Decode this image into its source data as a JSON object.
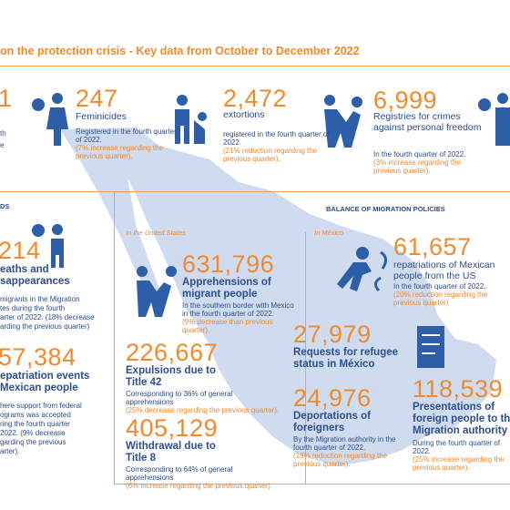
{
  "header": {
    "title": "on the protection crisis  - Key data from October to December 2022"
  },
  "cropped_top": {
    "figure": "1",
    "fragments": [
      "th",
      "e"
    ]
  },
  "top": [
    {
      "figure": "247",
      "label": "Feminicides",
      "note": "Registered in the fourth quarter of 2022.",
      "change": "(7% increase regarding the previous quarter)."
    },
    {
      "figure": "2,472",
      "label": "extortions",
      "note": "registered in the fourth quarter of 2022.",
      "change": "(21% reduction regarding the previous quarter)."
    },
    {
      "figure": "6,999",
      "label": "Registries for crimes against personal freedom",
      "note": "In the fourth quarter of 2022.",
      "change": "(3% increase regarding the previous quarter)."
    }
  ],
  "left": {
    "header": "DS",
    "items": [
      {
        "figure": "214",
        "label": [
          "eaths and",
          "sappearances"
        ],
        "note": [
          "migrants in the Migration",
          "tes during the fourth",
          "arter of 2022. (18% decrease",
          "arding the previous quarter)"
        ]
      },
      {
        "figure": "57,384",
        "label": [
          "epatriation events",
          "Mexican people"
        ],
        "note": [
          "here support from federal",
          "ograms was accepted",
          "ring the fourth quarter",
          "2022. (9% decrease",
          "garding the previous",
          "arter)."
        ]
      }
    ]
  },
  "united_states": {
    "place": "In the United States",
    "items": [
      {
        "figure": "631,796",
        "label": "Apprehensions of migrant people",
        "note": "In the southern border with Mexico in the fourth quarter of 2022.",
        "change": "(9% decrease than previous quarter)."
      },
      {
        "figure": "226,667",
        "label": "Expulsions due to Title 42",
        "note": "Corresponding to 36% of general apprehensions",
        "change": "(25% decrease regarding the previous quarter)."
      },
      {
        "figure": "405,129",
        "label": "Withdrawal due to Title 8",
        "note": "Corresponding to 64% of general apprehensions",
        "change": "(6% increase regarding the previous quarter)."
      }
    ]
  },
  "mexico": {
    "header": "BALANCE OF MIGRATION POLICIES",
    "place": "In México",
    "items": [
      {
        "figure": "61,657",
        "label": "repatriations of Mexican people from the US",
        "note": "In the fourth quarter of 2022.",
        "change": "(20% reduction regarding the previous quarter)"
      },
      {
        "figure": "27,979",
        "label": "Requests for refugee status in México"
      },
      {
        "figure": "24,976",
        "label": "Deportations of foreigners",
        "note": "By the Migration authority in the fourth quarter of 2022.",
        "change": "(16% reduction regarding the previous quarter)."
      },
      {
        "figure": "118,539",
        "label": "Presentations of foreign people to the Migration authority",
        "note": "During the fourth quarter of 2022.",
        "change": "(25% increase regarding the previous quarter)."
      }
    ]
  }
}
